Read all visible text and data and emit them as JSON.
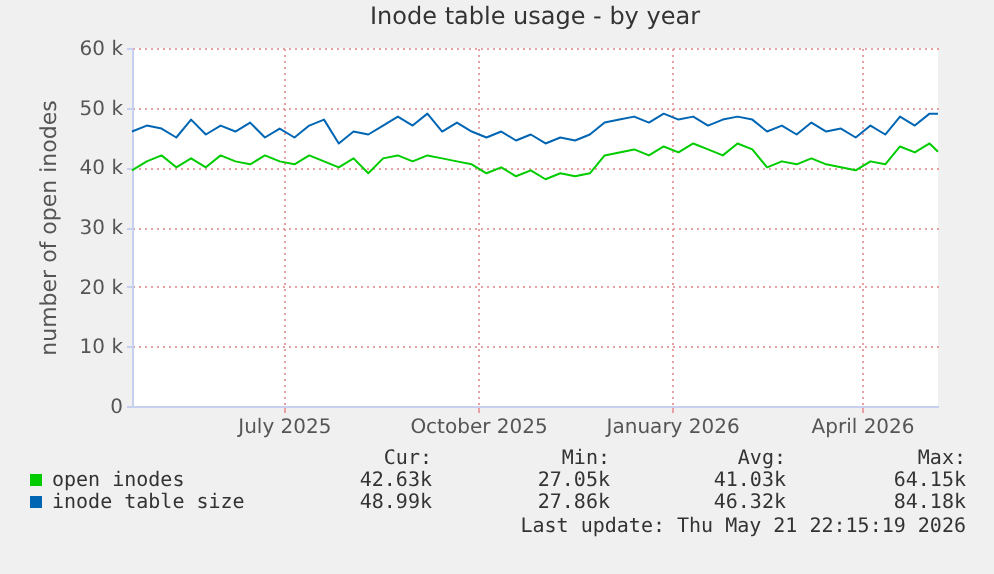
{
  "chart_data": {
    "type": "line",
    "title": "Inode table usage - by year",
    "ylabel": "number of open inodes",
    "x": [
      "2025-04-20",
      "2025-04-27",
      "2025-05-04",
      "2025-05-11",
      "2025-05-18",
      "2025-05-25",
      "2025-06-01",
      "2025-06-08",
      "2025-06-15",
      "2025-06-22",
      "2025-06-29",
      "2025-07-06",
      "2025-07-13",
      "2025-07-20",
      "2025-07-27",
      "2025-08-03",
      "2025-08-10",
      "2025-08-17",
      "2025-08-24",
      "2025-08-31",
      "2025-09-07",
      "2025-09-14",
      "2025-09-21",
      "2025-09-28",
      "2025-10-05",
      "2025-10-12",
      "2025-10-19",
      "2025-10-26",
      "2025-11-02",
      "2025-11-09",
      "2025-11-16",
      "2025-11-23",
      "2025-11-30",
      "2025-12-07",
      "2025-12-14",
      "2025-12-21",
      "2025-12-28",
      "2026-01-04",
      "2026-01-11",
      "2026-01-18",
      "2026-01-25",
      "2026-02-01",
      "2026-02-08",
      "2026-02-15",
      "2026-02-22",
      "2026-03-01",
      "2026-03-08",
      "2026-03-15",
      "2026-03-22",
      "2026-03-29",
      "2026-04-05",
      "2026-04-12",
      "2026-04-19",
      "2026-04-26",
      "2026-05-03",
      "2026-05-07"
    ],
    "series": [
      {
        "name": "open inodes",
        "color": "#00cc00",
        "values": [
          39500,
          41000,
          42000,
          40000,
          41500,
          40000,
          42000,
          41000,
          40500,
          42000,
          41000,
          40500,
          42000,
          41000,
          40000,
          41500,
          39000,
          41500,
          42000,
          41000,
          42000,
          41500,
          41000,
          40500,
          39000,
          40000,
          38500,
          39500,
          38000,
          39000,
          38500,
          39000,
          42000,
          42500,
          43000,
          42000,
          43500,
          42500,
          44000,
          43000,
          42000,
          44000,
          43000,
          40000,
          41000,
          40500,
          41500,
          40500,
          40000,
          39500,
          41000,
          40500,
          43500,
          42500,
          44000,
          42600
        ]
      },
      {
        "name": "inode table size",
        "color": "#0066b3",
        "values": [
          46000,
          47000,
          46500,
          45000,
          48000,
          45500,
          47000,
          46000,
          47500,
          45000,
          46500,
          45000,
          47000,
          48000,
          44000,
          46000,
          45500,
          47000,
          48500,
          47000,
          49000,
          46000,
          47500,
          46000,
          45000,
          46000,
          44500,
          45500,
          44000,
          45000,
          44500,
          45500,
          47500,
          48000,
          48500,
          47500,
          49000,
          48000,
          48500,
          47000,
          48000,
          48500,
          48000,
          46000,
          47000,
          45500,
          47500,
          46000,
          46500,
          45000,
          47000,
          45500,
          48500,
          47000,
          49000,
          49000
        ]
      }
    ],
    "xlim": [
      "2025-04-20",
      "2026-05-07"
    ],
    "xticks": [
      {
        "value": "2025-07-01",
        "label": "July 2025"
      },
      {
        "value": "2025-10-01",
        "label": "October 2025"
      },
      {
        "value": "2026-01-01",
        "label": "January 2026"
      },
      {
        "value": "2026-04-01",
        "label": "April 2026"
      }
    ],
    "ylim": [
      0,
      60000
    ],
    "yticks": [
      {
        "value": 0,
        "label": "0"
      },
      {
        "value": 10000,
        "label": "10 k"
      },
      {
        "value": 20000,
        "label": "20 k"
      },
      {
        "value": 30000,
        "label": "30 k"
      },
      {
        "value": 40000,
        "label": "40 k"
      },
      {
        "value": 50000,
        "label": "50 k"
      },
      {
        "value": 60000,
        "label": "60 k"
      }
    ],
    "grid": true,
    "legend": "bottom",
    "marker": "none",
    "line_style": "solid",
    "annotations": [
      "Cur:",
      "Min:",
      "Avg:",
      "Max:",
      "42.63k",
      "27.05k",
      "41.03k",
      "64.15k",
      "48.99k",
      "27.86k",
      "46.32k",
      "84.18k",
      "Last update: Thu May 21 22:15:19 2026"
    ]
  }
}
